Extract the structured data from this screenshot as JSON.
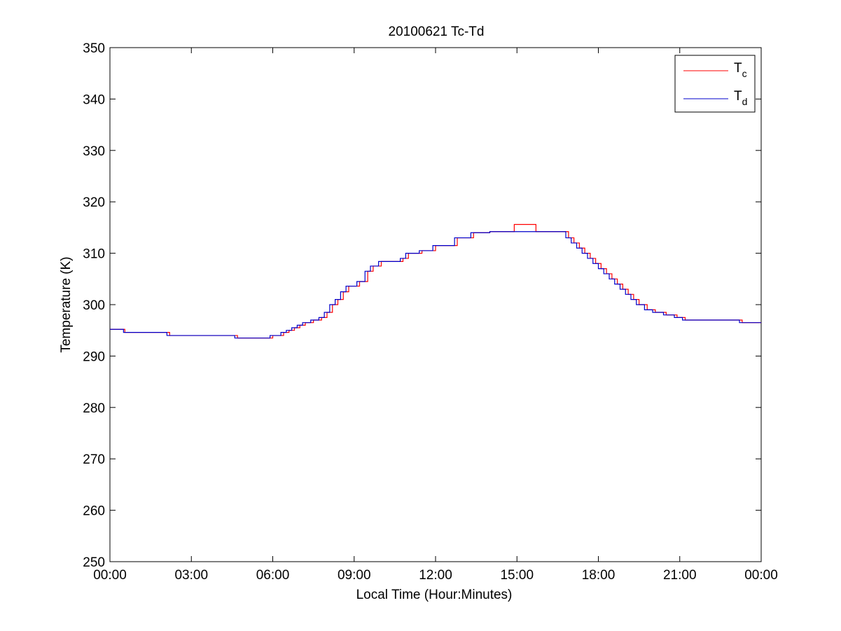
{
  "chart_data": {
    "type": "line",
    "title": "20100621 Tc-Td",
    "xlabel": "Local Time (Hour:Minutes)",
    "ylabel": "Temperature (K)",
    "xlim": [
      0,
      24
    ],
    "ylim": [
      250,
      350
    ],
    "x_ticks": [
      0,
      3,
      6,
      9,
      12,
      15,
      18,
      21,
      24
    ],
    "x_tick_labels": [
      "00:00",
      "03:00",
      "06:00",
      "09:00",
      "12:00",
      "15:00",
      "18:00",
      "21:00",
      "00:00"
    ],
    "y_ticks": [
      250,
      260,
      270,
      280,
      290,
      300,
      310,
      320,
      330,
      340,
      350
    ],
    "y_tick_labels": [
      "250",
      "260",
      "270",
      "280",
      "290",
      "300",
      "310",
      "320",
      "330",
      "340",
      "350"
    ],
    "grid": false,
    "legend_position": "top-right",
    "series": [
      {
        "name": "Tc",
        "legend_main": "T",
        "legend_sub": "c",
        "color": "#ff0000",
        "x": [
          0.0,
          0.5,
          0.55,
          2.1,
          2.2,
          4.6,
          4.7,
          5.9,
          6.0,
          6.3,
          6.4,
          6.6,
          6.8,
          7.0,
          7.2,
          7.5,
          7.8,
          8.0,
          8.2,
          8.4,
          8.6,
          8.8,
          9.2,
          9.5,
          9.7,
          10.0,
          10.5,
          10.8,
          11.0,
          11.5,
          12.0,
          12.8,
          13.4,
          14.0,
          14.8,
          14.9,
          15.6,
          15.7,
          16.5,
          16.9,
          17.1,
          17.3,
          17.5,
          17.7,
          17.9,
          18.1,
          18.3,
          18.5,
          18.7,
          18.9,
          19.1,
          19.3,
          19.5,
          19.8,
          20.1,
          20.5,
          20.9,
          21.2,
          22.0,
          22.5,
          23.0,
          23.3,
          24.0
        ],
        "y": [
          295.2,
          295.2,
          294.6,
          294.6,
          294.0,
          294.0,
          293.5,
          293.5,
          294.0,
          294.0,
          294.6,
          295.0,
          295.5,
          296.0,
          296.5,
          297.0,
          297.5,
          298.5,
          300.0,
          301.0,
          302.5,
          303.6,
          304.5,
          306.5,
          307.5,
          308.4,
          308.4,
          309.0,
          310.0,
          310.5,
          311.5,
          313.0,
          314.0,
          314.2,
          314.2,
          315.6,
          315.6,
          314.2,
          314.2,
          313.0,
          312.0,
          311.0,
          310.0,
          309.0,
          308.0,
          307.0,
          306.0,
          305.0,
          304.0,
          303.0,
          302.0,
          301.0,
          300.0,
          299.0,
          298.5,
          298.0,
          297.5,
          297.0,
          297.0,
          297.0,
          297.0,
          296.5,
          296.5
        ]
      },
      {
        "name": "Td",
        "legend_main": "T",
        "legend_sub": "d",
        "color": "#0000cc",
        "x": [
          0.0,
          0.45,
          0.5,
          2.0,
          2.1,
          4.5,
          4.6,
          5.8,
          5.9,
          6.2,
          6.3,
          6.5,
          6.7,
          6.9,
          7.1,
          7.4,
          7.7,
          7.9,
          8.1,
          8.3,
          8.5,
          8.7,
          9.1,
          9.4,
          9.6,
          9.9,
          10.4,
          10.7,
          10.9,
          11.4,
          11.9,
          12.7,
          13.3,
          14.0,
          16.5,
          16.8,
          17.0,
          17.2,
          17.4,
          17.6,
          17.8,
          18.0,
          18.2,
          18.4,
          18.6,
          18.8,
          19.0,
          19.2,
          19.4,
          19.7,
          20.0,
          20.4,
          20.8,
          21.1,
          22.0,
          22.5,
          22.9,
          23.2,
          24.0
        ],
        "y": [
          295.2,
          295.2,
          294.6,
          294.6,
          294.0,
          294.0,
          293.5,
          293.5,
          294.0,
          294.0,
          294.6,
          295.0,
          295.5,
          296.0,
          296.5,
          297.0,
          297.5,
          298.5,
          300.0,
          301.0,
          302.5,
          303.6,
          304.5,
          306.5,
          307.5,
          308.4,
          308.4,
          309.0,
          310.0,
          310.5,
          311.5,
          313.0,
          314.0,
          314.2,
          314.2,
          313.0,
          312.0,
          311.0,
          310.0,
          309.0,
          308.0,
          307.0,
          306.0,
          305.0,
          304.0,
          303.0,
          302.0,
          301.0,
          300.0,
          299.0,
          298.5,
          298.0,
          297.5,
          297.0,
          297.0,
          297.0,
          297.0,
          296.5,
          296.5
        ]
      }
    ]
  }
}
